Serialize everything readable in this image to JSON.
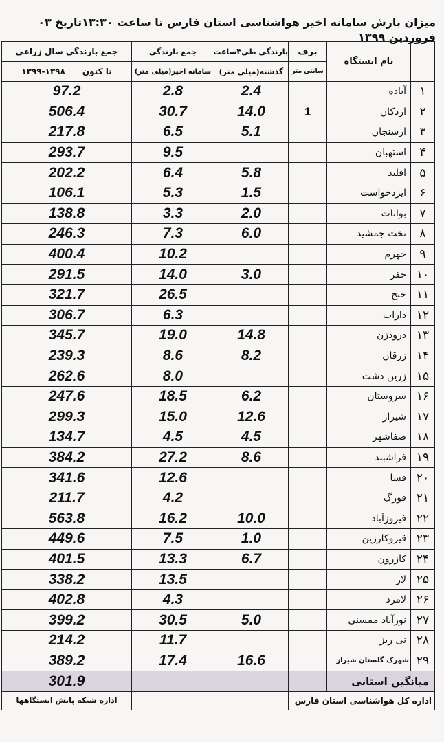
{
  "title": "میزان بارش سامانه اخیر هواشناسی استان فارس تا ساعت ۱۳:۳۰تاریخ ۰۳ فروردین ۱۳۹۹",
  "headers": {
    "station": "نام ایستگاه",
    "snow_top": "برف",
    "snow_unit": "سانتی متر",
    "h3_top": "بارندگی طی۳ساعت",
    "h3_unit": "گذشته(میلی متر)",
    "recent_top": "جمع بارندگی",
    "recent_unit": "سامانه اخیر(میلی متر)",
    "annual_top": "جمع بارندگی سال زراعی",
    "annual_unit_a": "تا کنون",
    "annual_unit_b": "۱۳۹۸-۱۳۹۹"
  },
  "rows": [
    {
      "idx": "۱",
      "name": "آباده",
      "snow": "",
      "h3": "2.4",
      "recent": "2.8",
      "annual": "97.2"
    },
    {
      "idx": "۲",
      "name": "اردکان",
      "snow": "1",
      "h3": "14.0",
      "recent": "30.7",
      "annual": "506.4"
    },
    {
      "idx": "۳",
      "name": "ارسنجان",
      "snow": "",
      "h3": "5.1",
      "recent": "6.5",
      "annual": "217.8"
    },
    {
      "idx": "۴",
      "name": "استهبان",
      "snow": "",
      "h3": "",
      "recent": "9.5",
      "annual": "293.7"
    },
    {
      "idx": "۵",
      "name": "اقلید",
      "snow": "",
      "h3": "5.8",
      "recent": "6.4",
      "annual": "202.2"
    },
    {
      "idx": "۶",
      "name": "ایزدخواست",
      "snow": "",
      "h3": "1.5",
      "recent": "5.3",
      "annual": "106.1"
    },
    {
      "idx": "۷",
      "name": "بوانات",
      "snow": "",
      "h3": "2.0",
      "recent": "3.3",
      "annual": "138.8"
    },
    {
      "idx": "۸",
      "name": "تخت جمشید",
      "snow": "",
      "h3": "6.0",
      "recent": "7.3",
      "annual": "246.3"
    },
    {
      "idx": "۹",
      "name": "جهرم",
      "snow": "",
      "h3": "",
      "recent": "10.2",
      "annual": "400.4"
    },
    {
      "idx": "۱۰",
      "name": "خفر",
      "snow": "",
      "h3": "3.0",
      "recent": "14.0",
      "annual": "291.5"
    },
    {
      "idx": "۱۱",
      "name": "خنج",
      "snow": "",
      "h3": "",
      "recent": "26.5",
      "annual": "321.7"
    },
    {
      "idx": "۱۲",
      "name": "داراب",
      "snow": "",
      "h3": "",
      "recent": "6.3",
      "annual": "306.7"
    },
    {
      "idx": "۱۳",
      "name": "درودزن",
      "snow": "",
      "h3": "14.8",
      "recent": "19.0",
      "annual": "345.7"
    },
    {
      "idx": "۱۴",
      "name": "زرقان",
      "snow": "",
      "h3": "8.2",
      "recent": "8.6",
      "annual": "239.3"
    },
    {
      "idx": "۱۵",
      "name": "زرین دشت",
      "snow": "",
      "h3": "",
      "recent": "8.0",
      "annual": "262.6"
    },
    {
      "idx": "۱۶",
      "name": "سروستان",
      "snow": "",
      "h3": "6.2",
      "recent": "18.5",
      "annual": "247.6"
    },
    {
      "idx": "۱۷",
      "name": "شیراز",
      "snow": "",
      "h3": "12.6",
      "recent": "15.0",
      "annual": "299.3"
    },
    {
      "idx": "۱۸",
      "name": "صفاشهر",
      "snow": "",
      "h3": "4.5",
      "recent": "4.5",
      "annual": "134.7"
    },
    {
      "idx": "۱۹",
      "name": "فراشبند",
      "snow": "",
      "h3": "8.6",
      "recent": "27.2",
      "annual": "384.2"
    },
    {
      "idx": "۲۰",
      "name": "فسا",
      "snow": "",
      "h3": "",
      "recent": "12.6",
      "annual": "341.6"
    },
    {
      "idx": "۲۱",
      "name": "فورگ",
      "snow": "",
      "h3": "",
      "recent": "4.2",
      "annual": "211.7"
    },
    {
      "idx": "۲۲",
      "name": "فیروزآباد",
      "snow": "",
      "h3": "10.0",
      "recent": "16.2",
      "annual": "563.8"
    },
    {
      "idx": "۲۳",
      "name": "قیروکارزین",
      "snow": "",
      "h3": "1.0",
      "recent": "7.5",
      "annual": "449.6"
    },
    {
      "idx": "۲۴",
      "name": "کازرون",
      "snow": "",
      "h3": "6.7",
      "recent": "13.3",
      "annual": "401.5"
    },
    {
      "idx": "۲۵",
      "name": "لار",
      "snow": "",
      "h3": "",
      "recent": "13.5",
      "annual": "338.2"
    },
    {
      "idx": "۲۶",
      "name": "لامرد",
      "snow": "",
      "h3": "",
      "recent": "4.3",
      "annual": "402.8"
    },
    {
      "idx": "۲۷",
      "name": "نورآباد ممسنی",
      "snow": "",
      "h3": "5.0",
      "recent": "30.5",
      "annual": "399.2"
    },
    {
      "idx": "۲۸",
      "name": "نی ریز",
      "snow": "",
      "h3": "",
      "recent": "11.7",
      "annual": "214.2"
    },
    {
      "idx": "۲۹",
      "name": "شهرک گلستان شیراز",
      "snow": "",
      "h3": "16.6",
      "recent": "17.4",
      "annual": "389.2"
    }
  ],
  "average": {
    "label": "میانگین استانی",
    "annual": "301.9"
  },
  "footer": {
    "right": "اداره کل هواشناسی استان فارس",
    "left": "اداره شبکه پایش ایستگاهها"
  }
}
